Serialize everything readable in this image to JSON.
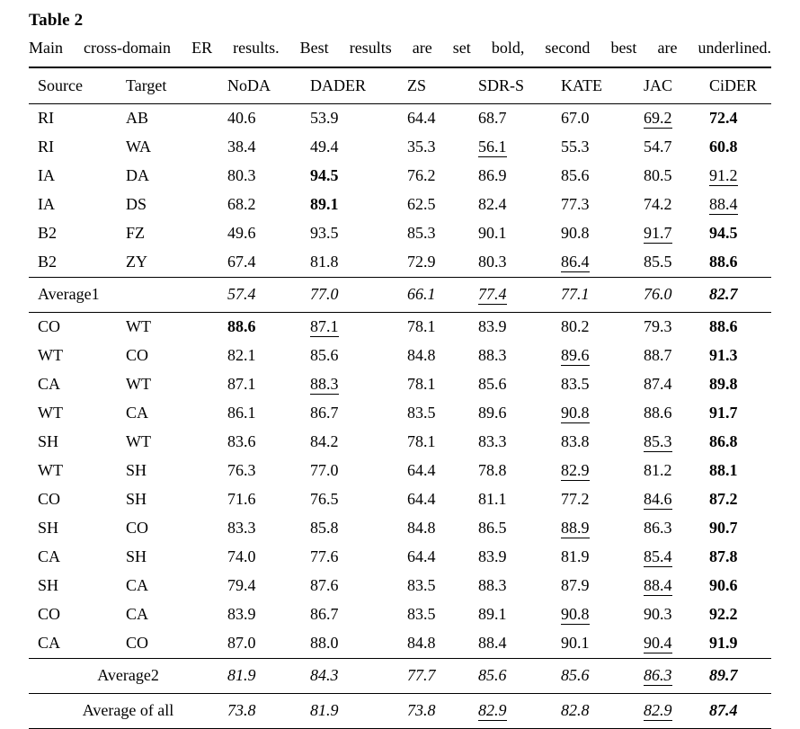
{
  "page": {
    "title": "Table 2",
    "caption": "Main cross-domain ER results. Best results are set bold, second best are underlined."
  },
  "table": {
    "columns": [
      "Source",
      "Target",
      "NoDA",
      "DADER",
      "ZS",
      "SDR-S",
      "KATE",
      "JAC",
      "CiDER"
    ],
    "block1": [
      {
        "cells": [
          "RI",
          "AB",
          "40.6",
          "53.9",
          "64.4",
          "68.7",
          "67.0",
          "69.2",
          "72.4"
        ],
        "underline": [
          7
        ],
        "bold": [
          8
        ]
      },
      {
        "cells": [
          "RI",
          "WA",
          "38.4",
          "49.4",
          "35.3",
          "56.1",
          "55.3",
          "54.7",
          "60.8"
        ],
        "underline": [
          5
        ],
        "bold": [
          8
        ]
      },
      {
        "cells": [
          "IA",
          "DA",
          "80.3",
          "94.5",
          "76.2",
          "86.9",
          "85.6",
          "80.5",
          "91.2"
        ],
        "underline": [
          8
        ],
        "bold": [
          3
        ]
      },
      {
        "cells": [
          "IA",
          "DS",
          "68.2",
          "89.1",
          "62.5",
          "82.4",
          "77.3",
          "74.2",
          "88.4"
        ],
        "underline": [
          8
        ],
        "bold": [
          3
        ]
      },
      {
        "cells": [
          "B2",
          "FZ",
          "49.6",
          "93.5",
          "85.3",
          "90.1",
          "90.8",
          "91.7",
          "94.5"
        ],
        "underline": [
          7
        ],
        "bold": [
          8
        ]
      },
      {
        "cells": [
          "B2",
          "ZY",
          "67.4",
          "81.8",
          "72.9",
          "80.3",
          "86.4",
          "85.5",
          "88.6"
        ],
        "underline": [
          6
        ],
        "bold": [
          8
        ]
      }
    ],
    "average1": {
      "label": "Average1",
      "align": "left",
      "values": [
        "57.4",
        "77.0",
        "66.1",
        "77.4",
        "77.1",
        "76.0",
        "82.7"
      ],
      "underline": [
        3
      ],
      "bold": [
        6
      ]
    },
    "block2": [
      {
        "cells": [
          "CO",
          "WT",
          "88.6",
          "87.1",
          "78.1",
          "83.9",
          "80.2",
          "79.3",
          "88.6"
        ],
        "underline": [
          3
        ],
        "bold": [
          2,
          8
        ]
      },
      {
        "cells": [
          "WT",
          "CO",
          "82.1",
          "85.6",
          "84.8",
          "88.3",
          "89.6",
          "88.7",
          "91.3"
        ],
        "underline": [
          6
        ],
        "bold": [
          8
        ]
      },
      {
        "cells": [
          "CA",
          "WT",
          "87.1",
          "88.3",
          "78.1",
          "85.6",
          "83.5",
          "87.4",
          "89.8"
        ],
        "underline": [
          3
        ],
        "bold": [
          8
        ]
      },
      {
        "cells": [
          "WT",
          "CA",
          "86.1",
          "86.7",
          "83.5",
          "89.6",
          "90.8",
          "88.6",
          "91.7"
        ],
        "underline": [
          6
        ],
        "bold": [
          8
        ]
      },
      {
        "cells": [
          "SH",
          "WT",
          "83.6",
          "84.2",
          "78.1",
          "83.3",
          "83.8",
          "85.3",
          "86.8"
        ],
        "underline": [
          7
        ],
        "bold": [
          8
        ]
      },
      {
        "cells": [
          "WT",
          "SH",
          "76.3",
          "77.0",
          "64.4",
          "78.8",
          "82.9",
          "81.2",
          "88.1"
        ],
        "underline": [
          6
        ],
        "bold": [
          8
        ]
      },
      {
        "cells": [
          "CO",
          "SH",
          "71.6",
          "76.5",
          "64.4",
          "81.1",
          "77.2",
          "84.6",
          "87.2"
        ],
        "underline": [
          7
        ],
        "bold": [
          8
        ]
      },
      {
        "cells": [
          "SH",
          "CO",
          "83.3",
          "85.8",
          "84.8",
          "86.5",
          "88.9",
          "86.3",
          "90.7"
        ],
        "underline": [
          6
        ],
        "bold": [
          8
        ]
      },
      {
        "cells": [
          "CA",
          "SH",
          "74.0",
          "77.6",
          "64.4",
          "83.9",
          "81.9",
          "85.4",
          "87.8"
        ],
        "underline": [
          7
        ],
        "bold": [
          8
        ]
      },
      {
        "cells": [
          "SH",
          "CA",
          "79.4",
          "87.6",
          "83.5",
          "88.3",
          "87.9",
          "88.4",
          "90.6"
        ],
        "underline": [
          7
        ],
        "bold": [
          8
        ]
      },
      {
        "cells": [
          "CO",
          "CA",
          "83.9",
          "86.7",
          "83.5",
          "89.1",
          "90.8",
          "90.3",
          "92.2"
        ],
        "underline": [
          6
        ],
        "bold": [
          8
        ]
      },
      {
        "cells": [
          "CA",
          "CO",
          "87.0",
          "88.0",
          "84.8",
          "88.4",
          "90.1",
          "90.4",
          "91.9"
        ],
        "underline": [
          7
        ],
        "bold": [
          8
        ]
      }
    ],
    "average2": {
      "label": "Average2",
      "align": "center",
      "values": [
        "81.9",
        "84.3",
        "77.7",
        "85.6",
        "85.6",
        "86.3",
        "89.7"
      ],
      "underline": [
        5
      ],
      "bold": [
        6
      ]
    },
    "average_all": {
      "label": "Average of all",
      "align": "center",
      "values": [
        "73.8",
        "81.9",
        "73.8",
        "82.9",
        "82.8",
        "82.9",
        "87.4"
      ],
      "underline": [
        3,
        5
      ],
      "bold": [
        6
      ]
    }
  }
}
